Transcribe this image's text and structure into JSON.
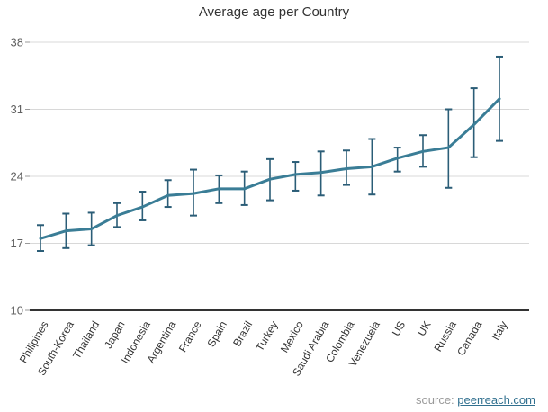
{
  "title": "Average age per Country",
  "source": {
    "prefix": "source: ",
    "link_text": "peerreach.com"
  },
  "colors": {
    "line": "#3a7d96",
    "error_bar": "#2b5d77",
    "grid": "#d8d8d8",
    "axis": "#333333",
    "y_label": "#606060",
    "x_label": "#333333",
    "title_text": "#333333",
    "source_text": "#999999",
    "link": "#31708f"
  },
  "chart_data": {
    "type": "line",
    "title": "Average age per Country",
    "xlabel": "",
    "ylabel": "",
    "categories": [
      "Philipines",
      "South-Korea",
      "Thailand",
      "Japan",
      "Indonesia",
      "Argentina",
      "France",
      "Spain",
      "Brazil",
      "Turkey",
      "Mexico",
      "Saudi Arabia",
      "Colombia",
      "Venezuela",
      "US",
      "UK",
      "Russia",
      "Canada",
      "Italy"
    ],
    "series": [
      {
        "name": "Average age",
        "values": [
          17.5,
          18.3,
          18.5,
          19.9,
          20.8,
          22.0,
          22.2,
          22.7,
          22.7,
          23.7,
          24.2,
          24.4,
          24.8,
          25.0,
          25.9,
          26.6,
          27.0,
          29.4,
          32.1
        ],
        "error_low": [
          16.2,
          16.5,
          16.8,
          18.7,
          19.4,
          20.8,
          19.9,
          21.2,
          21.0,
          21.5,
          22.5,
          22.0,
          23.1,
          22.1,
          24.5,
          25.0,
          22.8,
          26.0,
          27.7
        ],
        "error_high": [
          18.9,
          20.1,
          20.2,
          21.2,
          22.4,
          23.6,
          24.7,
          24.1,
          24.5,
          25.8,
          25.5,
          26.6,
          26.7,
          27.9,
          27.0,
          28.3,
          31.0,
          33.2,
          36.5
        ]
      }
    ],
    "ylim": [
      10,
      38
    ],
    "yticks": [
      10,
      17,
      24,
      31,
      38
    ],
    "grid": true,
    "legend": false,
    "error_bars": true
  }
}
